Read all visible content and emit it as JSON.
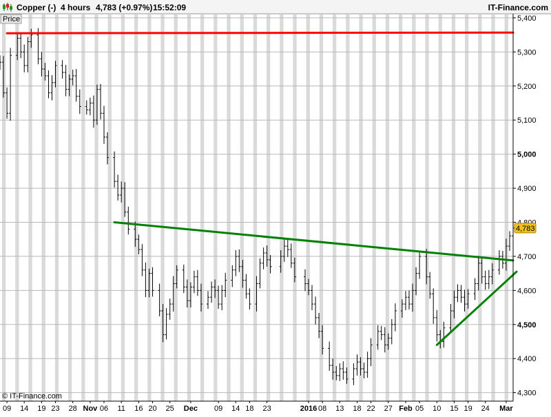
{
  "header": {
    "instrument": "Copper (-)",
    "timeframe": "4 hours",
    "price": "4,783 (+0.97%)",
    "time": "15:52:09",
    "brand": "IT-Finance.com"
  },
  "panel": {
    "label": "Price"
  },
  "footer": {
    "copyright": "© IT-Finance.com"
  },
  "colors": {
    "resistance": "#ff0000",
    "trendline": "#008000",
    "price_tag": "#f0c020",
    "candles": "#000000"
  },
  "icons": {
    "logo": "candlestick-logo-icon"
  },
  "chart_data": {
    "type": "line",
    "title": "",
    "ylim": [
      4275,
      5410
    ],
    "yticks": [
      {
        "v": 5400,
        "label": "5,400",
        "bold": false
      },
      {
        "v": 5300,
        "label": "5,300",
        "bold": false
      },
      {
        "v": 5200,
        "label": "5,200",
        "bold": false
      },
      {
        "v": 5100,
        "label": "5,100",
        "bold": false
      },
      {
        "v": 5000,
        "label": "5,000",
        "bold": true
      },
      {
        "v": 4900,
        "label": "4,900",
        "bold": false
      },
      {
        "v": 4800,
        "label": "4,800",
        "bold": false
      },
      {
        "v": 4700,
        "label": "4,700",
        "bold": false
      },
      {
        "v": 4600,
        "label": "4,600",
        "bold": false
      },
      {
        "v": 4500,
        "label": "4,500",
        "bold": true
      },
      {
        "v": 4400,
        "label": "4,400",
        "bold": false
      },
      {
        "v": 4300,
        "label": "4,300",
        "bold": false
      }
    ],
    "xlim": [
      "2015-10-07",
      "2016-03-03"
    ],
    "xticks": [
      {
        "d": "2015-10-09",
        "label": "09",
        "bold": false
      },
      {
        "d": "2015-10-14",
        "label": "14",
        "bold": false
      },
      {
        "d": "2015-10-19",
        "label": "19",
        "bold": false
      },
      {
        "d": "2015-10-23",
        "label": "23",
        "bold": false
      },
      {
        "d": "2015-10-28",
        "label": "28",
        "bold": false
      },
      {
        "d": "2015-11-02",
        "label": "Nov",
        "bold": true
      },
      {
        "d": "2015-11-06",
        "label": "06",
        "bold": false
      },
      {
        "d": "2015-11-11",
        "label": "11",
        "bold": false
      },
      {
        "d": "2015-11-16",
        "label": "16",
        "bold": false
      },
      {
        "d": "2015-11-20",
        "label": "20",
        "bold": false
      },
      {
        "d": "2015-11-25",
        "label": "25",
        "bold": false
      },
      {
        "d": "2015-12-01",
        "label": "Dec",
        "bold": true
      },
      {
        "d": "2015-12-09",
        "label": "09",
        "bold": false
      },
      {
        "d": "2015-12-14",
        "label": "14",
        "bold": false
      },
      {
        "d": "2015-12-18",
        "label": "18",
        "bold": false
      },
      {
        "d": "2015-12-23",
        "label": "23",
        "bold": false
      },
      {
        "d": "2016-01-04",
        "label": "2016",
        "bold": true
      },
      {
        "d": "2016-01-08",
        "label": "08",
        "bold": false
      },
      {
        "d": "2016-01-13",
        "label": "13",
        "bold": false
      },
      {
        "d": "2016-01-18",
        "label": "18",
        "bold": false
      },
      {
        "d": "2016-01-22",
        "label": "22",
        "bold": false
      },
      {
        "d": "2016-01-27",
        "label": "27",
        "bold": false
      },
      {
        "d": "2016-02-01",
        "label": "Feb",
        "bold": true
      },
      {
        "d": "2016-02-05",
        "label": "05",
        "bold": false
      },
      {
        "d": "2016-02-10",
        "label": "10",
        "bold": false
      },
      {
        "d": "2016-02-15",
        "label": "15",
        "bold": false
      },
      {
        "d": "2016-02-19",
        "label": "19",
        "bold": false
      },
      {
        "d": "2016-02-24",
        "label": "24",
        "bold": false
      },
      {
        "d": "2016-03-01",
        "label": "Mar",
        "bold": true
      }
    ],
    "last_price": {
      "value": 4783,
      "label": "4,783"
    },
    "annotations": [
      {
        "name": "resistance-line",
        "color": "#ff0000",
        "points": [
          [
            "2015-10-09",
            5355
          ],
          [
            "2016-03-03",
            5357
          ]
        ]
      },
      {
        "name": "descending-trendline",
        "color": "#008000",
        "points": [
          [
            "2015-11-09",
            4800
          ],
          [
            "2016-03-03",
            4688
          ]
        ]
      },
      {
        "name": "ascending-trendline",
        "color": "#008000",
        "points": [
          [
            "2016-02-10",
            4440
          ],
          [
            "2016-03-04",
            4655
          ]
        ]
      }
    ],
    "series": [
      {
        "points": [
          [
            "2015-10-07",
            5270
          ],
          [
            "2015-10-08",
            5180
          ],
          [
            "2015-10-09",
            5120
          ],
          [
            "2015-10-10",
            5290
          ],
          [
            "2015-10-12",
            5340
          ],
          [
            "2015-10-13",
            5300
          ],
          [
            "2015-10-14",
            5260
          ],
          [
            "2015-10-15",
            5330
          ],
          [
            "2015-10-16",
            5350
          ],
          [
            "2015-10-18",
            5280
          ],
          [
            "2015-10-19",
            5250
          ],
          [
            "2015-10-20",
            5230
          ],
          [
            "2015-10-21",
            5180
          ],
          [
            "2015-10-22",
            5210
          ],
          [
            "2015-10-23",
            5260
          ],
          [
            "2015-10-25",
            5240
          ],
          [
            "2015-10-26",
            5190
          ],
          [
            "2015-10-27",
            5220
          ],
          [
            "2015-10-28",
            5230
          ],
          [
            "2015-10-29",
            5170
          ],
          [
            "2015-10-30",
            5140
          ],
          [
            "2015-11-01",
            5130
          ],
          [
            "2015-11-02",
            5150
          ],
          [
            "2015-11-03",
            5100
          ],
          [
            "2015-11-04",
            5190
          ],
          [
            "2015-11-05",
            5120
          ],
          [
            "2015-11-06",
            5050
          ],
          [
            "2015-11-07",
            4990
          ],
          [
            "2015-11-09",
            4920
          ],
          [
            "2015-11-10",
            4880
          ],
          [
            "2015-11-11",
            4900
          ],
          [
            "2015-11-12",
            4830
          ],
          [
            "2015-11-13",
            4780
          ],
          [
            "2015-11-15",
            4750
          ],
          [
            "2015-11-16",
            4720
          ],
          [
            "2015-11-17",
            4660
          ],
          [
            "2015-11-18",
            4600
          ],
          [
            "2015-11-19",
            4650
          ],
          [
            "2015-11-20",
            4600
          ],
          [
            "2015-11-22",
            4540
          ],
          [
            "2015-11-23",
            4470
          ],
          [
            "2015-11-24",
            4530
          ],
          [
            "2015-11-25",
            4560
          ],
          [
            "2015-11-26",
            4620
          ],
          [
            "2015-11-27",
            4660
          ],
          [
            "2015-11-29",
            4610
          ],
          [
            "2015-11-30",
            4570
          ],
          [
            "2015-12-01",
            4610
          ],
          [
            "2015-12-02",
            4640
          ],
          [
            "2015-12-03",
            4600
          ],
          [
            "2015-12-04",
            4560
          ],
          [
            "2015-12-06",
            4580
          ],
          [
            "2015-12-07",
            4610
          ],
          [
            "2015-12-08",
            4600
          ],
          [
            "2015-12-09",
            4560
          ],
          [
            "2015-12-10",
            4600
          ],
          [
            "2015-12-11",
            4630
          ],
          [
            "2015-12-13",
            4660
          ],
          [
            "2015-12-14",
            4700
          ],
          [
            "2015-12-15",
            4670
          ],
          [
            "2015-12-16",
            4630
          ],
          [
            "2015-12-17",
            4590
          ],
          [
            "2015-12-18",
            4560
          ],
          [
            "2015-12-20",
            4620
          ],
          [
            "2015-12-21",
            4680
          ],
          [
            "2015-12-22",
            4710
          ],
          [
            "2015-12-23",
            4690
          ],
          [
            "2015-12-24",
            4670
          ],
          [
            "2015-12-27",
            4700
          ],
          [
            "2015-12-28",
            4730
          ],
          [
            "2015-12-29",
            4720
          ],
          [
            "2015-12-30",
            4680
          ],
          [
            "2015-12-31",
            4640
          ],
          [
            "2016-01-03",
            4620
          ],
          [
            "2016-01-04",
            4600
          ],
          [
            "2016-01-05",
            4560
          ],
          [
            "2016-01-06",
            4520
          ],
          [
            "2016-01-07",
            4480
          ],
          [
            "2016-01-08",
            4430
          ],
          [
            "2016-01-10",
            4380
          ],
          [
            "2016-01-11",
            4360
          ],
          [
            "2016-01-12",
            4350
          ],
          [
            "2016-01-13",
            4370
          ],
          [
            "2016-01-14",
            4360
          ],
          [
            "2016-01-15",
            4340
          ],
          [
            "2016-01-17",
            4370
          ],
          [
            "2016-01-18",
            4390
          ],
          [
            "2016-01-19",
            4370
          ],
          [
            "2016-01-20",
            4360
          ],
          [
            "2016-01-21",
            4400
          ],
          [
            "2016-01-22",
            4440
          ],
          [
            "2016-01-24",
            4480
          ],
          [
            "2016-01-25",
            4470
          ],
          [
            "2016-01-26",
            4440
          ],
          [
            "2016-01-27",
            4460
          ],
          [
            "2016-01-28",
            4500
          ],
          [
            "2016-01-29",
            4540
          ],
          [
            "2016-01-31",
            4560
          ],
          [
            "2016-02-01",
            4580
          ],
          [
            "2016-02-02",
            4560
          ],
          [
            "2016-02-03",
            4600
          ],
          [
            "2016-02-04",
            4650
          ],
          [
            "2016-02-05",
            4700
          ],
          [
            "2016-02-07",
            4640
          ],
          [
            "2016-02-08",
            4590
          ],
          [
            "2016-02-09",
            4520
          ],
          [
            "2016-02-10",
            4470
          ],
          [
            "2016-02-11",
            4450
          ],
          [
            "2016-02-12",
            4490
          ],
          [
            "2016-02-14",
            4540
          ],
          [
            "2016-02-15",
            4580
          ],
          [
            "2016-02-16",
            4600
          ],
          [
            "2016-02-17",
            4580
          ],
          [
            "2016-02-18",
            4560
          ],
          [
            "2016-02-19",
            4590
          ],
          [
            "2016-02-21",
            4620
          ],
          [
            "2016-02-22",
            4680
          ],
          [
            "2016-02-23",
            4640
          ],
          [
            "2016-02-24",
            4620
          ],
          [
            "2016-02-25",
            4640
          ],
          [
            "2016-02-26",
            4660
          ],
          [
            "2016-02-28",
            4700
          ],
          [
            "2016-02-29",
            4680
          ],
          [
            "2016-03-01",
            4730
          ],
          [
            "2016-03-02",
            4760
          ],
          [
            "2016-03-03",
            4783
          ]
        ]
      }
    ]
  }
}
